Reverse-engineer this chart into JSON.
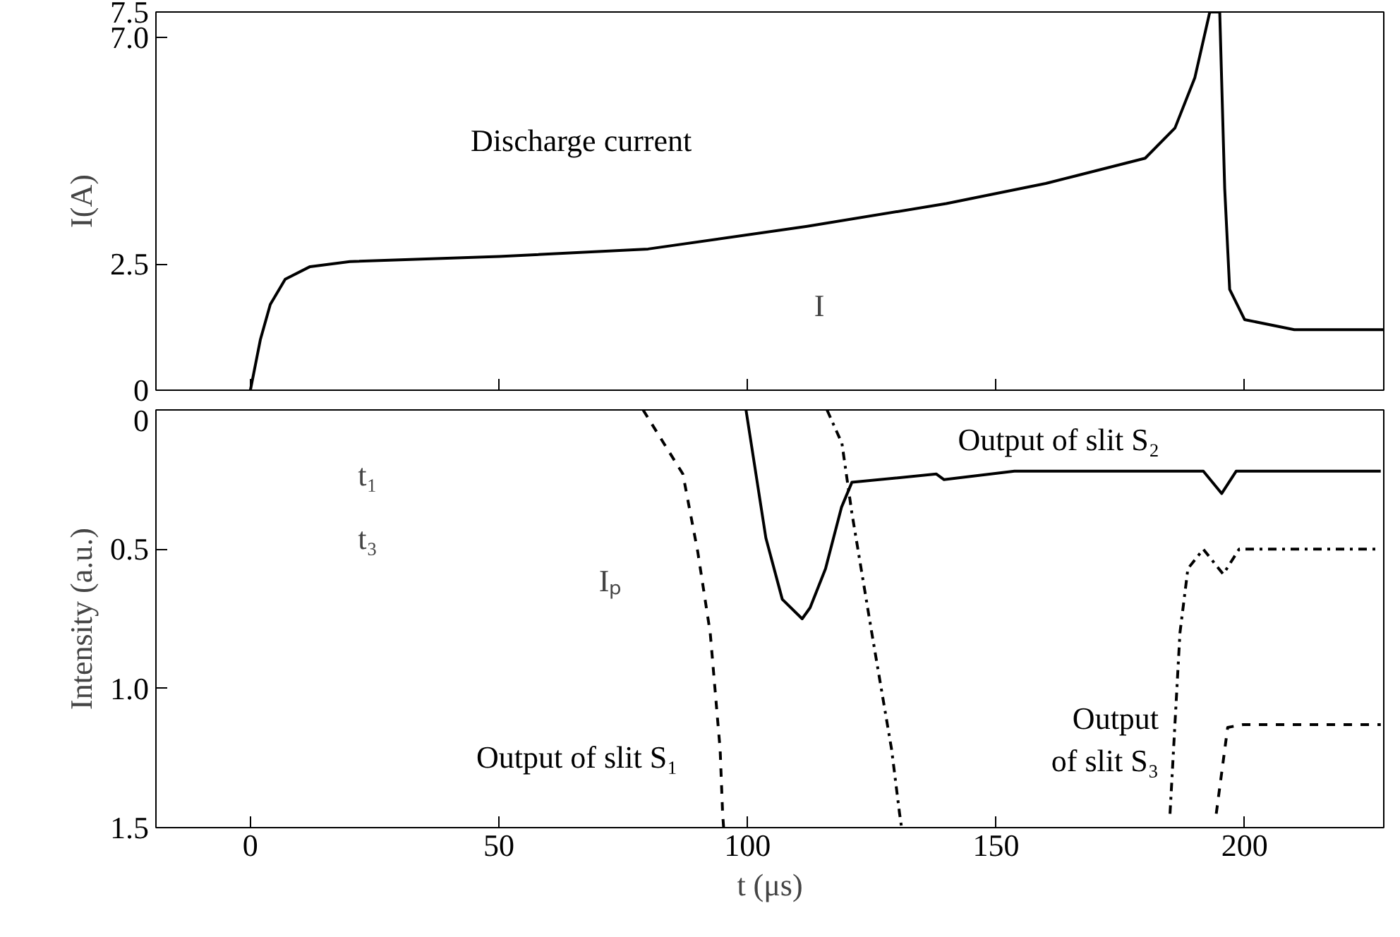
{
  "chart_data": [
    {
      "type": "line",
      "ylabel": "I(A)",
      "xlim": [
        -19,
        228
      ],
      "ylim": [
        0,
        7.5
      ],
      "xticks": [
        0,
        50,
        100,
        150,
        200
      ],
      "yticks": [
        0,
        2.5,
        {
          "value": 7,
          "label": "7.0"
        },
        7.5
      ],
      "tick_labels": "y",
      "grid": false,
      "line_style": "solid",
      "marker": "none",
      "series": [
        {
          "name": "Discharge current",
          "color": "#000000",
          "x": [
            0,
            2,
            4,
            7,
            12,
            20,
            50,
            80,
            112,
            140,
            160,
            180,
            186,
            190,
            193,
            195,
            196,
            197,
            200,
            210,
            228
          ],
          "values": [
            0,
            1.0,
            1.7,
            2.2,
            2.45,
            2.55,
            2.65,
            2.8,
            3.25,
            3.7,
            4.1,
            4.6,
            5.2,
            6.2,
            7.5,
            7.5,
            4.0,
            2.0,
            1.4,
            1.2,
            1.2
          ]
        }
      ],
      "annotations": [
        "I"
      ]
    },
    {
      "type": "line",
      "xlabel": "t (μs)",
      "ylabel": "Intensity (a.u.)",
      "xlim": [
        -19,
        228
      ],
      "ylim": [
        1.5,
        0
      ],
      "xticks": [
        0,
        50,
        100,
        150,
        200
      ],
      "yticks": [
        0,
        0.5,
        {
          "value": 1,
          "label": "1.0"
        },
        1.5
      ],
      "grid": false,
      "marker": "none",
      "series": [
        {
          "name": "Output of slit S₁",
          "color": "#000000",
          "line_style": "dashed",
          "x": [
            79,
            87,
            90,
            92.5,
            94.5,
            95,
            95.2,
            null,
            194.3,
            196.6,
            199.7,
            227.4
          ],
          "values": [
            0,
            0.23,
            0.51,
            0.8,
            1.22,
            1.45,
            1.5,
            null,
            1.45,
            1.14,
            1.13,
            1.13
          ]
        },
        {
          "name": "Output of slit S₂",
          "color": "#000000",
          "line_style": "solid",
          "x": [
            99.7,
            103.7,
            107,
            111,
            112.6,
            115.7,
            118.9,
            121,
            138,
            139.5,
            153.7,
            191.7,
            195.4,
            198.3,
            227.4
          ],
          "values": [
            0,
            0.46,
            0.68,
            0.75,
            0.71,
            0.57,
            0.35,
            0.26,
            0.23,
            0.25,
            0.22,
            0.22,
            0.3,
            0.22,
            0.22
          ]
        },
        {
          "name": "Output\nof slit S₃",
          "color": "#000000",
          "line_style": "dashdot",
          "x": [
            116,
            119,
            121,
            125,
            129,
            130.6,
            131,
            null,
            185,
            187,
            188.6,
            191.7,
            195.7,
            198.9,
            227.4
          ],
          "values": [
            0,
            0.12,
            0.37,
            0.8,
            1.22,
            1.45,
            1.5,
            null,
            1.45,
            0.8,
            0.57,
            0.5,
            0.59,
            0.5,
            0.5
          ]
        }
      ],
      "annotations": [
        "t₁",
        "t₃",
        "Iₚ"
      ]
    }
  ]
}
